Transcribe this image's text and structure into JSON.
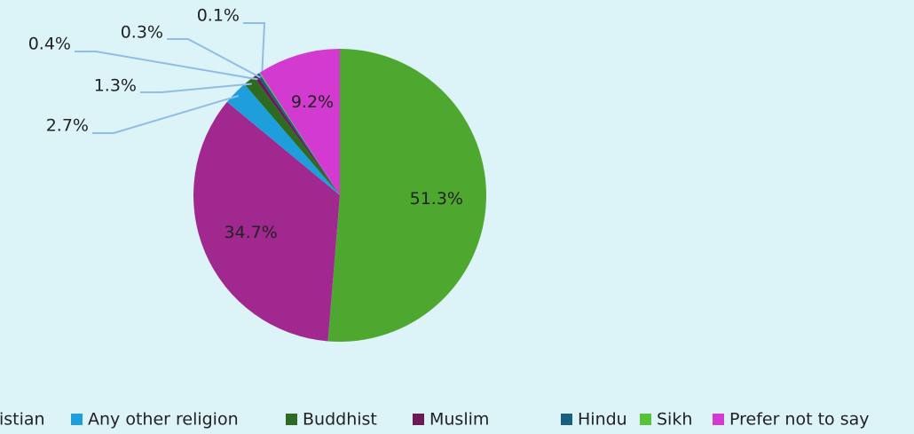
{
  "chart_data": {
    "type": "pie",
    "categories": [
      null,
      "istian",
      "Any other religion",
      "Buddhist",
      "Muslim",
      "Hindu",
      "Sikh",
      "Prefer not to say"
    ],
    "values": [
      51.3,
      34.7,
      2.7,
      1.3,
      0.4,
      0.3,
      0.1,
      9.2
    ],
    "value_labels": [
      "51.3%",
      "34.7%",
      "2.7%",
      "1.3%",
      "0.4%",
      "0.3%",
      "0.1%",
      "9.2%"
    ],
    "colors": [
      "#4ea72e",
      "#a0288f",
      "#1e9fdc",
      "#2e6b22",
      "#6b1a55",
      "#1a5e80",
      "#58c23a",
      "#d23ad0"
    ],
    "legend": "bottom"
  }
}
